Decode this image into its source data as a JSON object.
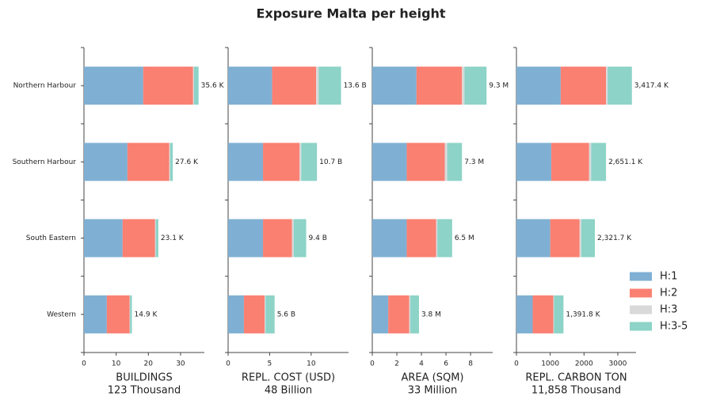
{
  "title": "Exposure Malta per height",
  "legend": "right",
  "chart_data": [
    {
      "type": "barh",
      "stacked": true,
      "categories": [
        "Northern Harbour",
        "Southern Harbour",
        "South Eastern",
        "Western"
      ],
      "series": [
        {
          "name": "H:1",
          "color": "#7fb0d3",
          "values": [
            18.4,
            13.5,
            12.0,
            7.1
          ]
        },
        {
          "name": "H:2",
          "color": "#fa8072",
          "values": [
            15.5,
            13.0,
            10.1,
            7.1
          ]
        },
        {
          "name": "H:3",
          "color": "#d9d9d9",
          "values": [
            0.3,
            0.3,
            0.2,
            0.1
          ]
        },
        {
          "name": "H:3-5",
          "color": "#8dd3c7",
          "values": [
            1.4,
            0.8,
            0.8,
            0.6
          ]
        }
      ],
      "totals": {
        "values": [
          35.6,
          27.6,
          23.1,
          14.9
        ],
        "value_labels": [
          "35.6 K",
          "27.6 K",
          "23.1 K",
          "14.9 K"
        ]
      },
      "xlim": [
        0,
        37.4
      ],
      "xticks": [
        0,
        10,
        20,
        30
      ],
      "xlabel": [
        "BUILDINGS",
        "123 Thousand"
      ]
    },
    {
      "type": "barh",
      "stacked": true,
      "sharey": true,
      "series": [
        {
          "color": "#7fb0d3",
          "values": [
            5.3,
            4.2,
            4.2,
            1.9
          ]
        },
        {
          "color": "#fa8072",
          "values": [
            5.3,
            4.4,
            3.5,
            2.5
          ]
        },
        {
          "color": "#d9d9d9",
          "values": [
            0.3,
            0.2,
            0.2,
            0.1
          ]
        },
        {
          "color": "#8dd3c7",
          "values": [
            2.7,
            1.9,
            1.5,
            1.1
          ]
        }
      ],
      "totals": {
        "values": [
          13.6,
          10.7,
          9.4,
          5.6
        ],
        "value_labels": [
          "13.6 B",
          "10.7 B",
          "9.4 B",
          "5.6 B"
        ]
      },
      "xlim": [
        0,
        14.5
      ],
      "xticks": [
        0,
        5,
        10
      ],
      "xlabel": [
        "REPL. COST (USD)",
        "48 Billion"
      ]
    },
    {
      "type": "barh",
      "stacked": true,
      "sharey": true,
      "series": [
        {
          "color": "#7fb0d3",
          "values": [
            3.6,
            2.8,
            2.8,
            1.3
          ]
        },
        {
          "color": "#fa8072",
          "values": [
            3.7,
            3.1,
            2.4,
            1.7
          ]
        },
        {
          "color": "#d9d9d9",
          "values": [
            0.2,
            0.2,
            0.1,
            0.1
          ]
        },
        {
          "color": "#8dd3c7",
          "values": [
            1.8,
            1.2,
            1.2,
            0.7
          ]
        }
      ],
      "totals": {
        "values": [
          9.3,
          7.3,
          6.5,
          3.8
        ],
        "value_labels": [
          "9.3 M",
          "7.3 M",
          "6.5 M",
          "3.8 M"
        ]
      },
      "xlim": [
        0,
        9.8
      ],
      "xticks": [
        0,
        2,
        4,
        6,
        8
      ],
      "xlabel": [
        "AREA (SQM)",
        "33 Million"
      ]
    },
    {
      "type": "barh",
      "stacked": true,
      "sharey": true,
      "series": [
        {
          "color": "#7fb0d3",
          "values": [
            1310,
            1030,
            1000,
            480
          ]
        },
        {
          "color": "#fa8072",
          "values": [
            1340,
            1120,
            870,
            610
          ]
        },
        {
          "color": "#d9d9d9",
          "values": [
            50,
            60,
            50,
            20
          ]
        },
        {
          "color": "#8dd3c7",
          "values": [
            717.4,
            441.1,
            401.7,
            281.8
          ]
        }
      ],
      "totals": {
        "values": [
          3417.4,
          2651.1,
          2321.7,
          1391.8
        ],
        "value_labels": [
          "3,417.4 K",
          "2,651.1 K",
          "2,321.7 K",
          "1,391.8 K"
        ]
      },
      "xlim": [
        0,
        3540
      ],
      "xticks": [
        0,
        1000,
        2000,
        3000
      ],
      "xlabel": [
        "REPL. CARBON TON",
        "11,858 Thousand"
      ]
    }
  ]
}
